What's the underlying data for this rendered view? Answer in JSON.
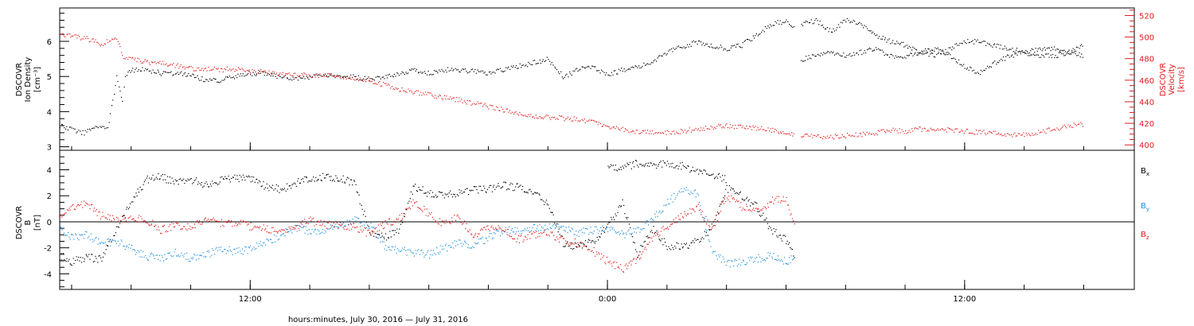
{
  "colors": {
    "black": "#000000",
    "red": "#e31a1c",
    "blue": "#1f8fe0",
    "frame": "#000000"
  },
  "x_axis": {
    "title": "hours:minutes, July 30, 2016 — July 31, 2016",
    "tick_labels": [
      {
        "hour": 12,
        "label": "12:00"
      },
      {
        "hour": 24,
        "label": "0:00"
      },
      {
        "hour": 36,
        "label": "12:00"
      }
    ],
    "range_hours": [
      5.6,
      41.7
    ],
    "minor_step_hours": 2
  },
  "chart_data": [
    {
      "type": "scatter",
      "panel": "plasma",
      "xlabel": "hours:minutes, July 30, 2016 — July 31, 2016",
      "ylabel_left": "DSCOVR Ion Density [cm⁻³]",
      "ylabel_left_lines": [
        "DSCOVR",
        "Ion Density",
        "[cm⁻³]"
      ],
      "ylabel_right": "DSCOVR Velocity [km/s]",
      "ylabel_right_lines": [
        "DSCOVR",
        "Velocity",
        "[km/s]"
      ],
      "ylim_left": [
        2.9,
        6.95
      ],
      "yticks_left": [
        {
          "v": 3,
          "label": "3"
        },
        {
          "v": 4,
          "label": "4"
        },
        {
          "v": 5,
          "label": "5"
        },
        {
          "v": 6,
          "label": "6"
        }
      ],
      "ylim_right": [
        395,
        527
      ],
      "yticks_right": [
        {
          "v": 400,
          "label": "400"
        },
        {
          "v": 420,
          "label": "420"
        },
        {
          "v": 440,
          "label": "440"
        },
        {
          "v": 460,
          "label": "460"
        },
        {
          "v": 480,
          "label": "480"
        },
        {
          "v": 500,
          "label": "500"
        },
        {
          "v": 520,
          "label": "520"
        }
      ],
      "grid": false,
      "series": [
        {
          "axis": "left",
          "color": "#000000",
          "x": [
            5.6,
            6.0,
            6.4,
            6.8,
            7.2,
            7.5,
            7.7,
            7.8,
            8.0,
            8.5,
            9.0,
            9.5,
            10.0,
            10.5,
            11.0,
            11.5,
            12.0,
            12.5,
            13.0,
            13.5,
            14.0,
            14.5,
            15.0,
            15.5,
            16.0,
            16.5,
            17.0,
            17.5,
            18.0,
            18.5,
            19.0,
            19.5,
            20.0,
            20.5,
            21.0,
            21.5,
            22.0,
            22.5,
            23.0,
            23.5,
            24.0,
            24.5,
            25.0,
            25.5,
            26.0,
            26.5,
            27.0,
            27.5,
            28.0,
            28.5,
            29.0,
            29.5,
            30.0,
            30.3
          ],
          "y": [
            3.6,
            3.5,
            3.4,
            3.6,
            3.5,
            5.0,
            4.3,
            5.0,
            5.2,
            5.2,
            5.1,
            5.1,
            5.05,
            4.9,
            4.9,
            5.0,
            5.1,
            5.1,
            5.0,
            4.95,
            5.0,
            5.05,
            5.0,
            5.0,
            4.95,
            5.0,
            5.1,
            5.2,
            5.1,
            5.2,
            5.2,
            5.15,
            5.1,
            5.2,
            5.3,
            5.4,
            5.5,
            5.0,
            5.2,
            5.3,
            5.05,
            5.2,
            5.3,
            5.4,
            5.7,
            5.85,
            6.0,
            5.9,
            5.8,
            5.9,
            6.2,
            6.5,
            6.6,
            6.4
          ]
        },
        {
          "axis": "left",
          "color": "#000000",
          "x": [
            30.5,
            31.0,
            31.5,
            32.0,
            32.5,
            33.0,
            33.5,
            34.0,
            34.5,
            35.0,
            35.5,
            36.0,
            36.5,
            37.0,
            37.5,
            38.0,
            38.5,
            39.0,
            39.5,
            40.0
          ],
          "y": [
            6.5,
            6.6,
            6.3,
            6.6,
            6.5,
            6.2,
            6.0,
            5.9,
            5.7,
            5.6,
            5.8,
            6.0,
            6.0,
            5.9,
            5.8,
            5.7,
            5.8,
            5.8,
            5.7,
            5.9
          ]
        },
        {
          "axis": "left",
          "color": "#000000",
          "x": [
            30.5,
            31.0,
            31.5,
            32.0,
            32.5,
            33.0,
            33.5,
            34.0,
            34.5,
            35.0,
            35.5,
            36.0,
            36.5,
            37.0,
            37.5,
            38.0,
            38.5,
            39.0,
            39.5,
            40.0
          ],
          "y": [
            5.5,
            5.6,
            5.7,
            5.6,
            5.7,
            5.8,
            5.6,
            5.6,
            5.7,
            5.8,
            5.6,
            5.3,
            5.1,
            5.4,
            5.6,
            5.7,
            5.6,
            5.6,
            5.7,
            5.6
          ]
        },
        {
          "axis": "right",
          "color": "#e31a1c",
          "x": [
            5.6,
            6.0,
            6.5,
            7.0,
            7.5,
            7.7,
            8.0,
            8.5,
            9.0,
            9.5,
            10.0,
            10.5,
            11.0,
            11.5,
            12.0,
            12.5,
            13.0,
            13.5,
            14.0,
            14.5,
            15.0,
            15.5,
            16.0,
            16.5,
            17.0,
            17.5,
            18.0,
            18.5,
            19.0,
            19.5,
            20.0,
            20.5,
            21.0,
            21.5,
            22.0,
            22.5,
            23.0,
            23.5,
            24.0,
            24.5,
            25.0,
            25.5,
            26.0,
            26.5,
            27.0,
            27.5,
            28.0,
            28.5,
            29.0,
            29.5,
            30.0,
            30.3
          ],
          "y": [
            503,
            501,
            499,
            494,
            500,
            483,
            480,
            477,
            476,
            474,
            471,
            471,
            470,
            471,
            469,
            468,
            466,
            465,
            465,
            465,
            463,
            462,
            460,
            456,
            452,
            449,
            447,
            444,
            442,
            439,
            436,
            433,
            430,
            427,
            426,
            425,
            424,
            421,
            418,
            415,
            413,
            412,
            412,
            413,
            415,
            417,
            418,
            417,
            416,
            414,
            412,
            410
          ]
        },
        {
          "axis": "right",
          "color": "#e31a1c",
          "x": [
            30.5,
            31.0,
            31.5,
            32.0,
            32.5,
            33.0,
            33.5,
            34.0,
            34.5,
            35.0,
            35.5,
            36.0,
            36.5,
            37.0,
            37.5,
            38.0,
            38.5,
            39.0,
            39.5,
            40.0
          ],
          "y": [
            409,
            408,
            408,
            409,
            410,
            411,
            414,
            413,
            415,
            415,
            414,
            413,
            412,
            411,
            410,
            410,
            412,
            415,
            418,
            420
          ]
        }
      ]
    },
    {
      "type": "scatter",
      "panel": "magnetic",
      "xlabel": "hours:minutes, July 30, 2016 — July 31, 2016",
      "ylabel_lines": [
        "DSCOVR",
        "B",
        "[nT]"
      ],
      "ylim": [
        -5.2,
        5.5
      ],
      "yticks": [
        {
          "v": -4,
          "label": "-4"
        },
        {
          "v": -2,
          "label": "-2"
        },
        {
          "v": 0,
          "label": "0"
        },
        {
          "v": 2,
          "label": "2"
        },
        {
          "v": 4,
          "label": "4"
        }
      ],
      "zero_line": true,
      "grid": false,
      "legend": "right",
      "legend_entries": [
        {
          "name": "Bx",
          "main": "B",
          "sub": "x",
          "color": "#000000"
        },
        {
          "name": "By",
          "main": "B",
          "sub": "y",
          "color": "#1f8fe0"
        },
        {
          "name": "Bz",
          "main": "B",
          "sub": "z",
          "color": "#e31a1c"
        }
      ],
      "series": [
        {
          "name": "Bx",
          "color": "#000000",
          "x": [
            5.6,
            6.0,
            6.5,
            7.0,
            7.5,
            8.0,
            8.5,
            9.0,
            9.5,
            10.0,
            10.5,
            11.0,
            11.5,
            12.0,
            12.5,
            13.0,
            13.5,
            14.0,
            14.5,
            15.0,
            15.5,
            16.0,
            16.5,
            17.0,
            17.5,
            18.0,
            18.5,
            19.0,
            19.5,
            20.0,
            20.5,
            21.0,
            21.5,
            22.0,
            22.5,
            23.0,
            23.5,
            24.0,
            24.5,
            25.0,
            25.5,
            26.0,
            26.5,
            27.0,
            27.5,
            28.0,
            28.5,
            29.0,
            29.5,
            30.0,
            30.3
          ],
          "y": [
            -2.6,
            -3.0,
            -2.7,
            -2.9,
            -0.5,
            1.5,
            3.3,
            3.5,
            3.0,
            3.3,
            2.8,
            3.3,
            3.4,
            3.3,
            2.8,
            2.5,
            3.0,
            3.3,
            3.5,
            3.4,
            3.0,
            -0.8,
            -1.2,
            -0.5,
            2.8,
            2.2,
            2.0,
            2.3,
            2.5,
            2.6,
            2.8,
            2.7,
            2.3,
            1.4,
            -1.6,
            -1.9,
            -1.5,
            -0.3,
            1.5,
            -2.5,
            -0.5,
            -1.8,
            -1.9,
            -1.5,
            -0.4,
            2.6,
            2.0,
            1.2,
            -0.6,
            -1.4,
            -2.6
          ]
        },
        {
          "name": "Bx (upper)",
          "color": "#000000",
          "x": [
            24.0,
            24.5,
            25.0,
            25.5,
            26.0,
            26.5,
            27.0,
            27.5,
            28.0
          ],
          "y": [
            4.1,
            4.3,
            4.5,
            4.4,
            4.5,
            4.3,
            4.0,
            3.7,
            3.3
          ]
        },
        {
          "name": "By",
          "color": "#1f8fe0",
          "x": [
            5.6,
            6.0,
            6.5,
            7.0,
            7.5,
            8.0,
            8.5,
            9.0,
            9.5,
            10.0,
            10.5,
            11.0,
            11.5,
            12.0,
            12.5,
            13.0,
            13.5,
            14.0,
            14.5,
            15.0,
            15.5,
            16.0,
            16.5,
            17.0,
            17.5,
            18.0,
            18.5,
            19.0,
            19.5,
            20.0,
            20.5,
            21.0,
            21.5,
            22.0,
            22.5,
            23.0,
            23.5,
            24.0,
            24.5,
            25.0,
            25.5,
            26.0,
            26.5,
            27.0,
            27.5,
            28.0,
            28.5,
            29.0,
            29.5,
            30.0,
            30.3
          ],
          "y": [
            -0.5,
            -1.2,
            -0.9,
            -1.6,
            -1.5,
            -2.0,
            -2.6,
            -2.8,
            -2.3,
            -2.8,
            -2.5,
            -2.0,
            -2.3,
            -2.1,
            -1.6,
            -1.0,
            -0.4,
            -0.7,
            -0.6,
            -0.3,
            0.2,
            -0.2,
            -1.8,
            -2.2,
            -2.3,
            -2.5,
            -2.0,
            -1.6,
            -1.8,
            -1.2,
            -0.6,
            -0.7,
            -0.4,
            -0.3,
            -0.5,
            -0.8,
            -0.6,
            -0.5,
            -1.0,
            -0.6,
            0.2,
            1.5,
            2.5,
            2.2,
            -2.2,
            -3.2,
            -3.1,
            -2.8,
            -2.6,
            -3.0,
            -2.8
          ]
        },
        {
          "name": "Bz",
          "color": "#e31a1c",
          "x": [
            5.6,
            6.0,
            6.5,
            7.0,
            7.5,
            8.0,
            8.5,
            9.0,
            9.5,
            10.0,
            10.5,
            11.0,
            11.5,
            12.0,
            12.5,
            13.0,
            13.5,
            14.0,
            14.5,
            15.0,
            15.5,
            16.0,
            16.5,
            17.0,
            17.5,
            18.0,
            18.5,
            19.0,
            19.5,
            20.0,
            20.5,
            21.0,
            21.5,
            22.0,
            22.5,
            23.0,
            23.5,
            24.0,
            24.5,
            25.0,
            25.5,
            26.0,
            26.5,
            27.0,
            27.5,
            28.0,
            28.5,
            29.0,
            29.5,
            30.0,
            30.3
          ],
          "y": [
            0.3,
            1.2,
            1.4,
            0.5,
            0.1,
            0.4,
            0.2,
            -0.6,
            -0.2,
            -0.4,
            0.2,
            -0.1,
            0.0,
            -0.3,
            -0.5,
            -0.6,
            -0.3,
            0.1,
            -0.2,
            -0.2,
            -0.4,
            -0.9,
            -0.2,
            0.3,
            1.6,
            0.6,
            -0.2,
            0.5,
            -1.2,
            -0.4,
            -0.6,
            -1.3,
            -1.0,
            -0.8,
            -1.4,
            -1.6,
            -2.2,
            -3.0,
            -3.6,
            -2.8,
            -1.2,
            -0.3,
            0.5,
            1.2,
            -0.5,
            2.0,
            1.2,
            0.8,
            1.6,
            1.9,
            -0.6
          ]
        }
      ]
    }
  ]
}
